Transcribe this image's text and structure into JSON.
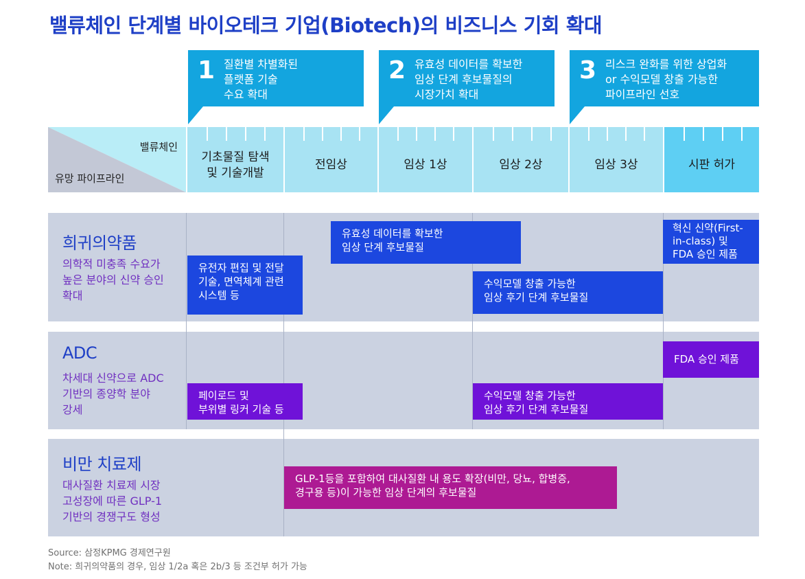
{
  "title": "밸류체인 단계별 바이오테크 기업(Biotech)의 비즈니스 기회 확대",
  "callouts": [
    {
      "num": "1",
      "text": "질환별 차별화된\n플랫폼 기술\n수요 확대"
    },
    {
      "num": "2",
      "text": "유효성 데이터를 확보한\n임상 단계 후보물질의\n시장가치 확대"
    },
    {
      "num": "3",
      "text": "리스크 완화를 위한 상업화\nor 수익모델 창출 가능한\n파이프라인 선호"
    }
  ],
  "header": {
    "value_chain_label": "밸류체인",
    "pipeline_label": "유망 파이프라인",
    "stages": [
      "기초물질 탐색\n및 기술개발",
      "전임상",
      "임상 1상",
      "임상 2상",
      "임상 3상",
      "시판 허가"
    ]
  },
  "rows": [
    {
      "title": "희귀의약품",
      "desc": "의학적 미충족 수요가\n높은 분야의 신약 승인\n확대",
      "boxes": [
        "유전자 편집 및 전달\n기술, 면역체계 관련\n시스템 등",
        "유효성 데이터를 확보한\n임상 단계 후보물질",
        "수익모델 창출 가능한\n임상 후기 단계 후보물질",
        "혁신 신약(First-\nin-class) 및\nFDA 승인 제품"
      ]
    },
    {
      "title": "ADC",
      "desc": "차세대 신약으로 ADC\n기반의 종양학 분야\n강세",
      "boxes": [
        "페이로드 및\n부위별 링커 기술 등",
        "수익모델 창출 가능한\n임상 후기 단계 후보물질",
        "FDA 승인 제품"
      ]
    },
    {
      "title": "비만 치료제",
      "desc": "대사질환 치료제 시장\n고성장에 따른 GLP-1\n기반의 경쟁구도 형성",
      "boxes": [
        "GLP-1등을 포함하여 대사질환 내 용도 확장(비만, 당뇨, 합병증,\n경구용 등)이 가능한 임상 단계의 후보물질"
      ]
    }
  ],
  "footer": {
    "source": "Source: 삼정KPMG 경제연구원",
    "note": "Note: 희귀의약품의 경우, 임상 1/2a 혹은 2b/3 등 조건부 허가 가능"
  },
  "colors": {
    "title": "#1e3fc6",
    "callout": "#13a5df",
    "stage_light": "#a8e3f3",
    "stage_dark": "#5ecff3",
    "row_bg": "#cbd2e1",
    "box_blue": "#1c47df",
    "box_purple": "#6f12d8",
    "box_magenta": "#ad1a93",
    "desc_text": "#7030c0"
  }
}
